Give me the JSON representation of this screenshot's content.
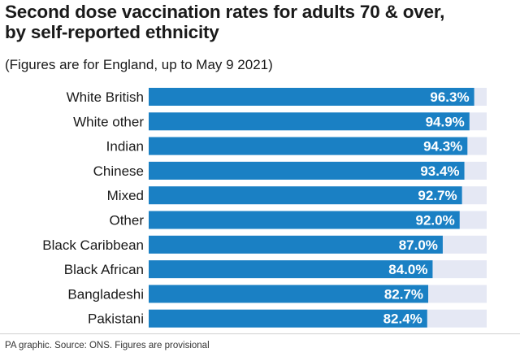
{
  "title_line1": "Second dose vaccination rates for adults 70 & over,",
  "title_line2": "by self-reported ethnicity",
  "subtitle": "(Figures are for England, up to May 9 2021)",
  "footer": "PA graphic. Source: ONS. Figures are provisional",
  "colors": {
    "bar": "#1a80c4",
    "track": "#e5e8f4",
    "text": "#1a1a1a"
  },
  "chart_data": {
    "type": "bar",
    "orientation": "horizontal",
    "categories": [
      "White British",
      "White other",
      "Indian",
      "Chinese",
      "Mixed",
      "Other",
      "Black Caribbean",
      "Black African",
      "Bangladeshi",
      "Pakistani"
    ],
    "values": [
      96.3,
      94.9,
      94.3,
      93.4,
      92.7,
      92.0,
      87.0,
      84.0,
      82.7,
      82.4
    ],
    "value_labels": [
      "96.3%",
      "94.9%",
      "94.3%",
      "93.4%",
      "92.7%",
      "92.0%",
      "87.0%",
      "84.0%",
      "82.7%",
      "82.4%"
    ],
    "xlim": [
      0,
      100
    ],
    "grid": false,
    "legend": "none"
  }
}
